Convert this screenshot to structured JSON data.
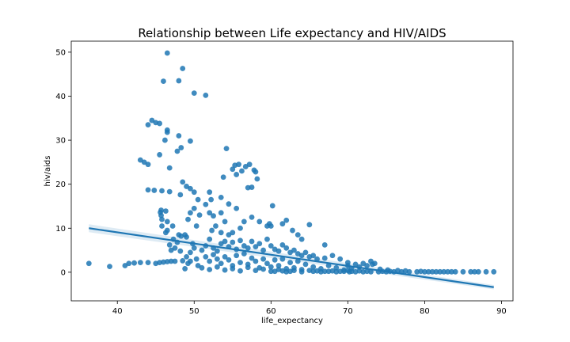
{
  "chart_data": {
    "type": "scatter",
    "title": "Relationship between Life expectancy and HIV/AIDS",
    "xlabel": "life_expectancy",
    "ylabel": "hiv/aids",
    "xlim": [
      34,
      91.5
    ],
    "ylim": [
      -6.5,
      52.5
    ],
    "xticks": [
      40,
      50,
      60,
      70,
      80,
      90
    ],
    "yticks": [
      0,
      10,
      20,
      30,
      40,
      50
    ],
    "grid": false,
    "color": "#1f77b4",
    "regression": {
      "x_start": 36.3,
      "y_start": 10.0,
      "x_end": 89.0,
      "y_end": -3.4
    },
    "series": [
      {
        "points": [
          [
            36.3,
            2.0
          ],
          [
            39.0,
            1.3
          ],
          [
            41.0,
            1.5
          ],
          [
            41.5,
            2.0
          ],
          [
            42.2,
            2.1
          ],
          [
            43.0,
            2.2
          ],
          [
            44.0,
            2.2
          ],
          [
            45.0,
            2.0
          ],
          [
            45.5,
            2.2
          ],
          [
            46.0,
            2.3
          ],
          [
            46.5,
            2.4
          ],
          [
            47.0,
            2.5
          ],
          [
            47.5,
            2.5
          ],
          [
            48.5,
            2.6
          ],
          [
            49.5,
            2.5
          ],
          [
            46.5,
            49.8
          ],
          [
            48.5,
            46.3
          ],
          [
            46.0,
            43.4
          ],
          [
            48.0,
            43.5
          ],
          [
            50.0,
            40.7
          ],
          [
            51.5,
            40.2
          ],
          [
            44.0,
            33.5
          ],
          [
            44.5,
            34.5
          ],
          [
            45.0,
            34.0
          ],
          [
            45.5,
            33.8
          ],
          [
            46.5,
            32.3
          ],
          [
            46.5,
            31.8
          ],
          [
            48.0,
            31.0
          ],
          [
            46.2,
            30.0
          ],
          [
            49.5,
            29.8
          ],
          [
            48.3,
            28.3
          ],
          [
            47.8,
            27.5
          ],
          [
            45.5,
            26.7
          ],
          [
            43.0,
            25.5
          ],
          [
            43.5,
            25.0
          ],
          [
            44.0,
            24.5
          ],
          [
            46.8,
            23.7
          ],
          [
            48.5,
            20.5
          ],
          [
            49.0,
            19.5
          ],
          [
            49.5,
            19.0
          ],
          [
            44.0,
            18.7
          ],
          [
            44.8,
            18.6
          ],
          [
            45.8,
            18.5
          ],
          [
            46.8,
            18.3
          ],
          [
            48.2,
            17.6
          ],
          [
            50.0,
            18.2
          ],
          [
            50.5,
            16.5
          ],
          [
            51.5,
            15.4
          ],
          [
            52.0,
            18.2
          ],
          [
            52.2,
            16.5
          ],
          [
            53.5,
            17.0
          ],
          [
            54.5,
            15.5
          ],
          [
            53.8,
            21.6
          ],
          [
            55.0,
            23.4
          ],
          [
            55.3,
            24.3
          ],
          [
            55.8,
            24.5
          ],
          [
            56.2,
            23.0
          ],
          [
            56.7,
            24.0
          ],
          [
            57.2,
            24.5
          ],
          [
            57.8,
            23.2
          ],
          [
            58.0,
            22.8
          ],
          [
            58.2,
            21.2
          ],
          [
            55.5,
            22.2
          ],
          [
            57.0,
            19.2
          ],
          [
            57.5,
            19.3
          ],
          [
            54.2,
            28.1
          ],
          [
            55.5,
            14.5
          ],
          [
            45.7,
            12.9
          ],
          [
            45.6,
            13.6
          ],
          [
            45.7,
            14.1
          ],
          [
            46.3,
            13.9
          ],
          [
            45.8,
            12.0
          ],
          [
            46.5,
            11.5
          ],
          [
            47.2,
            10.5
          ],
          [
            48.0,
            8.5
          ],
          [
            46.5,
            9.5
          ],
          [
            46.3,
            9.0
          ],
          [
            48.3,
            8.2
          ],
          [
            49.0,
            8.0
          ],
          [
            47.3,
            7.5
          ],
          [
            47.8,
            6.8
          ],
          [
            46.8,
            6.2
          ],
          [
            45.8,
            10.5
          ],
          [
            49.2,
            12.0
          ],
          [
            49.5,
            13.5
          ],
          [
            50.0,
            14.5
          ],
          [
            50.7,
            13.0
          ],
          [
            50.3,
            10.5
          ],
          [
            48.8,
            8.5
          ],
          [
            47.5,
            5.5
          ],
          [
            47.0,
            5.0
          ],
          [
            48.2,
            4.8
          ],
          [
            52.0,
            13.5
          ],
          [
            52.5,
            12.8
          ],
          [
            53.5,
            13.5
          ],
          [
            54.0,
            11.5
          ],
          [
            52.8,
            10.5
          ],
          [
            52.3,
            9.5
          ],
          [
            53.5,
            9.0
          ],
          [
            54.5,
            8.5
          ],
          [
            55.0,
            9.0
          ],
          [
            56.0,
            10.0
          ],
          [
            56.5,
            11.5
          ],
          [
            57.5,
            12.5
          ],
          [
            58.5,
            11.5
          ],
          [
            59.5,
            10.5
          ],
          [
            59.8,
            11.0
          ],
          [
            60.0,
            10.5
          ],
          [
            60.2,
            15.1
          ],
          [
            61.5,
            11.0
          ],
          [
            62.0,
            11.8
          ],
          [
            62.8,
            9.5
          ],
          [
            63.5,
            8.5
          ],
          [
            64.0,
            7.5
          ],
          [
            65.0,
            10.8
          ],
          [
            67.0,
            6.2
          ],
          [
            51.0,
            5.0
          ],
          [
            51.5,
            6.0
          ],
          [
            52.0,
            7.5
          ],
          [
            52.5,
            5.5
          ],
          [
            53.0,
            4.8
          ],
          [
            53.5,
            6.5
          ],
          [
            54.0,
            7.0
          ],
          [
            54.5,
            5.8
          ],
          [
            55.0,
            6.8
          ],
          [
            55.5,
            5.2
          ],
          [
            56.0,
            7.2
          ],
          [
            56.5,
            6.0
          ],
          [
            57.0,
            5.5
          ],
          [
            57.5,
            7.0
          ],
          [
            58.0,
            5.8
          ],
          [
            58.5,
            6.5
          ],
          [
            59.0,
            5.0
          ],
          [
            59.5,
            7.5
          ],
          [
            60.0,
            6.0
          ],
          [
            60.5,
            5.2
          ],
          [
            61.0,
            4.8
          ],
          [
            61.5,
            6.2
          ],
          [
            62.0,
            5.5
          ],
          [
            62.5,
            4.5
          ],
          [
            63.0,
            5.0
          ],
          [
            63.5,
            4.2
          ],
          [
            64.0,
            3.8
          ],
          [
            64.5,
            4.5
          ],
          [
            65.0,
            3.5
          ],
          [
            65.5,
            3.8
          ],
          [
            66.0,
            3.0
          ],
          [
            67.0,
            3.2
          ],
          [
            68.0,
            3.8
          ],
          [
            69.0,
            3.0
          ],
          [
            70.0,
            2.2
          ],
          [
            51.5,
            3.5
          ],
          [
            52.0,
            2.5
          ],
          [
            52.5,
            4.0
          ],
          [
            53.0,
            3.0
          ],
          [
            53.5,
            2.0
          ],
          [
            54.0,
            3.5
          ],
          [
            54.5,
            2.8
          ],
          [
            55.0,
            1.5
          ],
          [
            55.5,
            3.8
          ],
          [
            56.0,
            2.2
          ],
          [
            56.5,
            4.2
          ],
          [
            57.0,
            1.8
          ],
          [
            57.5,
            3.2
          ],
          [
            58.0,
            2.5
          ],
          [
            58.5,
            1.0
          ],
          [
            59.0,
            3.0
          ],
          [
            59.5,
            2.0
          ],
          [
            60.0,
            1.2
          ],
          [
            60.5,
            2.8
          ],
          [
            61.0,
            1.5
          ],
          [
            61.5,
            3.0
          ],
          [
            62.0,
            0.8
          ],
          [
            62.5,
            2.2
          ],
          [
            63.0,
            1.0
          ],
          [
            63.5,
            2.5
          ],
          [
            64.0,
            0.6
          ],
          [
            64.5,
            1.8
          ],
          [
            65.0,
            0.4
          ],
          [
            65.5,
            1.2
          ],
          [
            66.0,
            0.3
          ],
          [
            66.5,
            0.8
          ],
          [
            67.0,
            0.2
          ],
          [
            67.5,
            1.5
          ],
          [
            68.0,
            0.3
          ],
          [
            68.5,
            1.0
          ],
          [
            69.0,
            0.2
          ],
          [
            69.5,
            0.5
          ],
          [
            51.0,
            1.0
          ],
          [
            52.0,
            0.6
          ],
          [
            53.0,
            1.2
          ],
          [
            54.0,
            0.5
          ],
          [
            55.0,
            0.8
          ],
          [
            56.0,
            0.3
          ],
          [
            57.0,
            1.1
          ],
          [
            58.0,
            0.4
          ],
          [
            59.0,
            0.7
          ],
          [
            60.0,
            0.2
          ],
          [
            61.0,
            0.6
          ],
          [
            62.0,
            0.1
          ],
          [
            63.0,
            0.4
          ],
          [
            64.0,
            0.1
          ],
          [
            49.0,
            3.5
          ],
          [
            49.5,
            4.5
          ],
          [
            50.0,
            5.5
          ],
          [
            50.3,
            3.0
          ],
          [
            49.8,
            6.5
          ],
          [
            49.2,
            2.0
          ],
          [
            48.8,
            0.8
          ],
          [
            50.5,
            1.5
          ],
          [
            70.5,
            0.2
          ],
          [
            71.0,
            0.1
          ],
          [
            71.5,
            0.3
          ],
          [
            72.0,
            0.1
          ],
          [
            72.5,
            0.2
          ],
          [
            73.0,
            0.1
          ],
          [
            73.5,
            2.0
          ],
          [
            74.0,
            0.1
          ],
          [
            74.5,
            0.2
          ],
          [
            75.0,
            0.1
          ],
          [
            75.5,
            0.2
          ],
          [
            76.0,
            0.1
          ],
          [
            77.0,
            0.1
          ],
          [
            78.0,
            0.1
          ],
          [
            79.0,
            0.1
          ],
          [
            80.0,
            0.1
          ],
          [
            80.5,
            0.1
          ],
          [
            81.0,
            0.1
          ],
          [
            81.5,
            0.1
          ],
          [
            82.0,
            0.1
          ],
          [
            82.5,
            0.1
          ],
          [
            83.0,
            0.1
          ],
          [
            83.5,
            0.1
          ],
          [
            84.0,
            0.1
          ],
          [
            85.0,
            0.1
          ],
          [
            86.0,
            0.1
          ],
          [
            86.5,
            0.1
          ],
          [
            87.0,
            0.1
          ],
          [
            88.0,
            0.1
          ],
          [
            89.0,
            0.1
          ],
          [
            70.0,
            1.5
          ],
          [
            71.0,
            1.8
          ],
          [
            72.0,
            2.0
          ],
          [
            72.5,
            1.5
          ],
          [
            73.0,
            2.5
          ],
          [
            71.5,
            1.2
          ],
          [
            70.5,
            0.9
          ],
          [
            73.2,
            1.8
          ],
          [
            74.2,
            0.7
          ],
          [
            75.2,
            0.5
          ],
          [
            76.5,
            0.4
          ],
          [
            77.5,
            0.3
          ],
          [
            79.5,
            0.2
          ],
          [
            70.0,
            0.4
          ],
          [
            70.2,
            0.1
          ],
          [
            60.5,
            0.2
          ],
          [
            61.5,
            0.3
          ],
          [
            62.5,
            0.2
          ],
          [
            65.5,
            0.2
          ],
          [
            66.5,
            0.1
          ],
          [
            67.5,
            0.2
          ],
          [
            68.5,
            0.1
          ],
          [
            69.5,
            0.2
          ]
        ]
      }
    ]
  }
}
